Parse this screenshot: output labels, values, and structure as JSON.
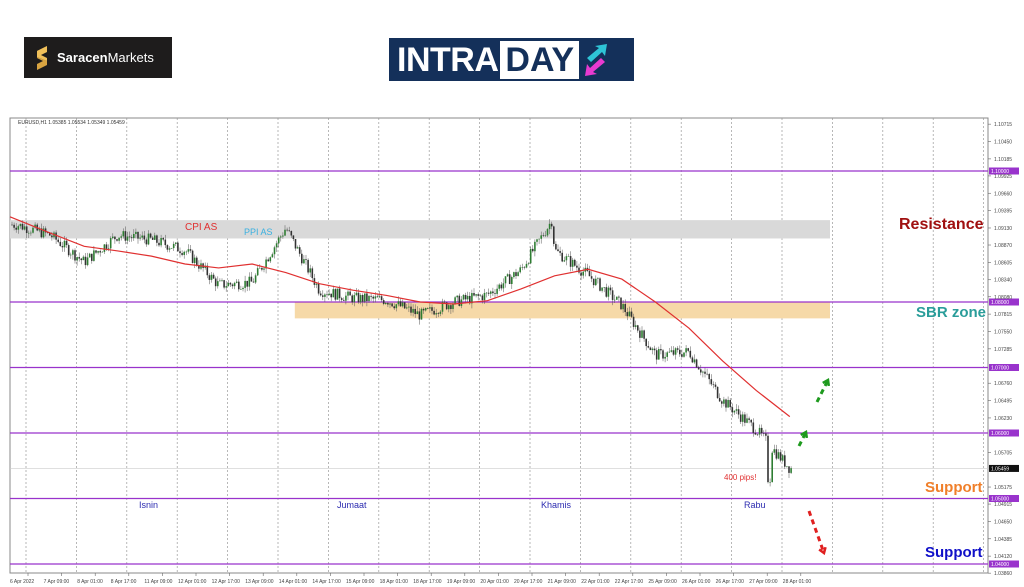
{
  "logos": {
    "broker": {
      "bold": "Saracen",
      "regular": "Markets"
    },
    "intraday": {
      "part1": "INTRA",
      "part2": "DAY"
    }
  },
  "colors": {
    "level_line": "#9933cc",
    "ma_line": "#e03030",
    "resistance_zone": "#d9d9d9",
    "sbr_zone": "#f6d9a8",
    "bull_candle": "#2e7d32",
    "bear_candle": "#333333",
    "resistance_text": "#a01010",
    "sbr_text": "#2a9d9a",
    "support_orange": "#f07f2a",
    "support_blue": "#1010c8",
    "day_label": "#2b2bb0",
    "arrow_up": "#1e9a1e",
    "arrow_down": "#e02020"
  },
  "chart_data": {
    "type": "candlestick",
    "symbol_header": "EURUSD,H1  1.05385 1.05534 1.05349 1.05459",
    "ylim": [
      1.0386,
      1.1075
    ],
    "y_ticks": [
      "1.10715",
      "1.10450",
      "1.10185",
      "1.09925",
      "1.09660",
      "1.09395",
      "1.09130",
      "1.08870",
      "1.08605",
      "1.08340",
      "1.08080",
      "1.07815",
      "1.07550",
      "1.07285",
      "1.06760",
      "1.06495",
      "1.06230",
      "1.05705",
      "1.05175",
      "1.04915",
      "1.04650",
      "1.04385",
      "1.04120",
      "1.03860"
    ],
    "x_ticks": [
      "6 Apr 2022",
      "7 Apr 09:00",
      "8 Apr 01:00",
      "8 Apr 17:00",
      "11 Apr 09:00",
      "12 Apr 01:00",
      "12 Apr 17:00",
      "13 Apr 09:00",
      "14 Apr 01:00",
      "14 Apr 17:00",
      "15 Apr 09:00",
      "18 Apr 01:00",
      "18 Apr 17:00",
      "19 Apr 09:00",
      "20 Apr 01:00",
      "20 Apr 17:00",
      "21 Apr 09:00",
      "22 Apr 01:00",
      "22 Apr 17:00",
      "25 Apr 09:00",
      "26 Apr 01:00",
      "26 Apr 17:00",
      "27 Apr 09:00",
      "28 Apr 01:00"
    ],
    "current_price": "1.05459",
    "levels": [
      {
        "price": 1.1,
        "label": "1.10000"
      },
      {
        "price": 1.08,
        "label": "1.08000"
      },
      {
        "price": 1.07,
        "label": "1.07000"
      },
      {
        "price": 1.06,
        "label": "1.06000"
      },
      {
        "price": 1.05,
        "label": "1.05000"
      },
      {
        "price": 1.04,
        "label": "1.04000"
      }
    ],
    "zones": [
      {
        "name": "resistance",
        "from": 1.0897,
        "to": 1.0925,
        "start": "6 Apr 2022"
      },
      {
        "name": "sbr",
        "from": 1.0775,
        "to": 1.08,
        "start": "14 Apr 01:00"
      }
    ],
    "close_approx": [
      {
        "t": "6 Apr 2022",
        "close": 1.0918
      },
      {
        "t": "7 Apr 09:00",
        "close": 1.0902
      },
      {
        "t": "8 Apr 01:00",
        "close": 1.0861
      },
      {
        "t": "8 Apr 17:00",
        "close": 1.0902
      },
      {
        "t": "11 Apr 09:00",
        "close": 1.0895
      },
      {
        "t": "12 Apr 01:00",
        "close": 1.0879
      },
      {
        "t": "12 Apr 17:00",
        "close": 1.0826
      },
      {
        "t": "13 Apr 09:00",
        "close": 1.083
      },
      {
        "t": "14 Apr 01:00",
        "close": 1.0913
      },
      {
        "t": "14 Apr 17:00",
        "close": 1.0818
      },
      {
        "t": "15 Apr 09:00",
        "close": 1.0806
      },
      {
        "t": "18 Apr 01:00",
        "close": 1.0803
      },
      {
        "t": "18 Apr 17:00",
        "close": 1.078
      },
      {
        "t": "19 Apr 09:00",
        "close": 1.08
      },
      {
        "t": "20 Apr 01:00",
        "close": 1.0811
      },
      {
        "t": "20 Apr 17:00",
        "close": 1.0849
      },
      {
        "t": "21 Apr 09:00",
        "close": 1.0879
      },
      {
        "t": "22 Apr 01:00",
        "close": 1.0841
      },
      {
        "t": "22 Apr 17:00",
        "close": 1.0795
      },
      {
        "t": "25 Apr 09:00",
        "close": 1.0719
      },
      {
        "t": "26 Apr 01:00",
        "close": 1.0724
      },
      {
        "t": "26 Apr 17:00",
        "close": 1.065
      },
      {
        "t": "27 Apr 09:00",
        "close": 1.0605
      },
      {
        "t": "28 Apr 01:00",
        "close": 1.0546
      }
    ],
    "ma_approx": [
      1.093,
      1.0905,
      1.0885,
      1.0878,
      1.087,
      1.0858,
      1.0852,
      1.0858,
      1.0845,
      1.0828,
      1.0818,
      1.081,
      1.08,
      1.0797,
      1.0802,
      1.082,
      1.084,
      1.085,
      1.0835,
      1.08,
      1.076,
      1.071,
      1.0665,
      1.0625
    ]
  },
  "annotations": {
    "cpi": "CPI AS",
    "ppi": "PPI AS",
    "resistance": "Resistance",
    "sbr": "SBR zone",
    "support1": "Support",
    "support2": "Support",
    "pips": "400 pips!",
    "days": [
      "Isnin",
      "Jumaat",
      "Khamis",
      "Rabu"
    ]
  }
}
